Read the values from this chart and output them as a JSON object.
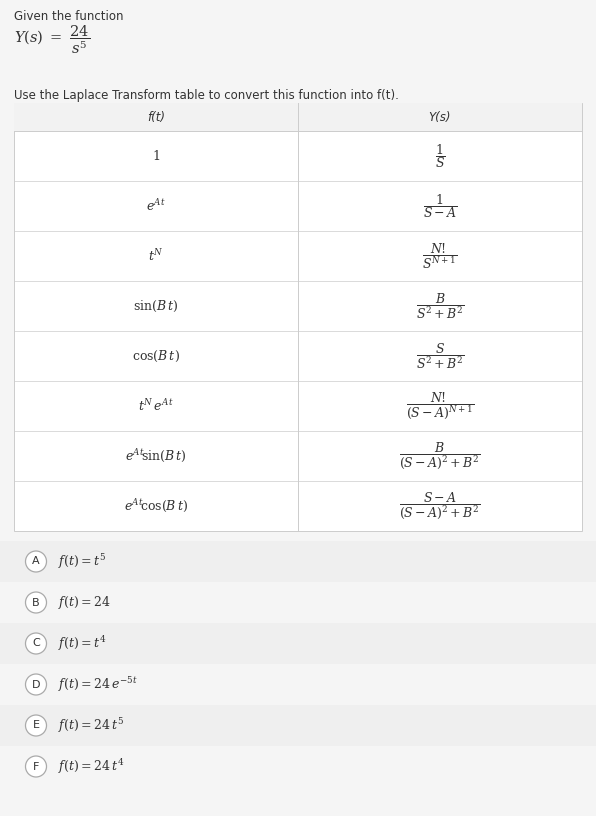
{
  "title_text": "Given the function",
  "function_display": "Y(s) = \\frac{24}{s^5}",
  "instruction_text": "Use the Laplace Transform table to convert this function into f(t).",
  "table_header": [
    "f(t)",
    "Y(s)"
  ],
  "table_rows_ft": [
    "1",
    "e^{At}",
    "t^{N}",
    "\\sin(B\\,t)",
    "\\cos(B\\,t)",
    "t^{N}\\,e^{At}",
    "e^{At}\\!\\sin(B\\,t)",
    "e^{At}\\!\\cos(B\\,t)"
  ],
  "table_rows_ys": [
    "\\dfrac{1}{S}",
    "\\dfrac{1}{S-A}",
    "\\dfrac{N!}{S^{N+1}}",
    "\\dfrac{B}{S^2+B^2}",
    "\\dfrac{S}{S^2+B^2}",
    "\\dfrac{N!}{(S-A)^{N+1}}",
    "\\dfrac{B}{(S-A)^2+B^2}",
    "\\dfrac{S-A}{(S-A)^2+B^2}"
  ],
  "choice_labels": [
    "A",
    "B",
    "C",
    "D",
    "E",
    "F"
  ],
  "choice_math": [
    "f(t) = t^5",
    "f(t) = 24",
    "f(t) = t^4",
    "f(t) = 24\\,e^{-5t}",
    "f(t) = 24\\,t^5",
    "f(t) = 24\\,t^4"
  ],
  "bg_color": "#f5f5f5",
  "table_bg": "#ffffff",
  "border_color": "#cccccc",
  "text_color": "#333333"
}
